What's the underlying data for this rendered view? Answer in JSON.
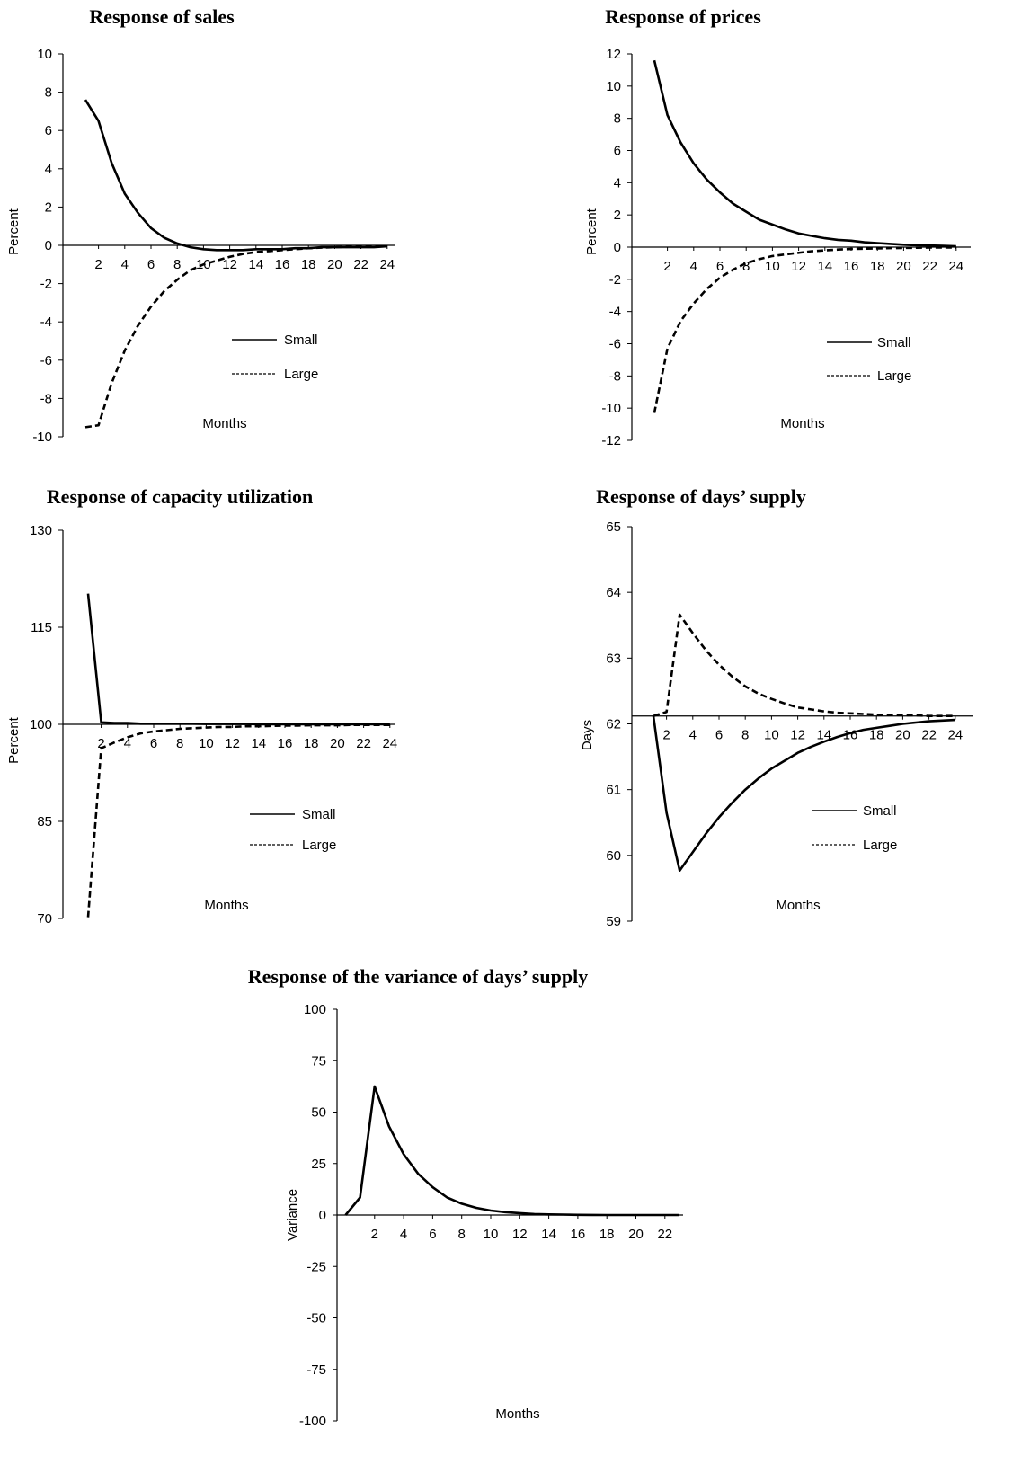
{
  "chart_data": [
    {
      "type": "line",
      "title": "Response of sales",
      "xlabel": "Months",
      "ylabel": "Percent",
      "ylim": [
        -10,
        10
      ],
      "yticks": [
        10,
        8,
        6,
        4,
        2,
        0,
        -2,
        -4,
        -6,
        -8,
        -10
      ],
      "xticks": [
        2,
        4,
        6,
        8,
        10,
        12,
        14,
        16,
        18,
        20,
        22,
        24
      ],
      "x": [
        1,
        2,
        3,
        4,
        5,
        6,
        7,
        8,
        9,
        10,
        11,
        12,
        13,
        14,
        15,
        16,
        17,
        18,
        19,
        20,
        21,
        22,
        23,
        24
      ],
      "series": [
        {
          "name": "Small",
          "dash": "solid",
          "values": [
            7.6,
            6.5,
            4.3,
            2.7,
            1.7,
            0.9,
            0.4,
            0.1,
            -0.1,
            -0.2,
            -0.25,
            -0.25,
            -0.25,
            -0.2,
            -0.2,
            -0.2,
            -0.15,
            -0.15,
            -0.1,
            -0.1,
            -0.1,
            -0.1,
            -0.1,
            -0.05
          ]
        },
        {
          "name": "Large",
          "dash": "dashed",
          "values": [
            -9.5,
            -9.4,
            -7.2,
            -5.5,
            -4.2,
            -3.2,
            -2.4,
            -1.8,
            -1.3,
            -1.0,
            -0.8,
            -0.6,
            -0.45,
            -0.35,
            -0.3,
            -0.25,
            -0.2,
            -0.15,
            -0.12,
            -0.1,
            -0.08,
            -0.06,
            -0.05,
            -0.05
          ]
        }
      ]
    },
    {
      "type": "line",
      "title": "Response of prices",
      "xlabel": "Months",
      "ylabel": "Percent",
      "ylim": [
        -12,
        12
      ],
      "yticks": [
        12,
        10,
        8,
        6,
        4,
        2,
        0,
        -2,
        -4,
        -6,
        -8,
        -10,
        -12
      ],
      "xticks": [
        2,
        4,
        6,
        8,
        10,
        12,
        14,
        16,
        18,
        20,
        22,
        24
      ],
      "x": [
        1,
        2,
        3,
        4,
        5,
        6,
        7,
        8,
        9,
        10,
        11,
        12,
        13,
        14,
        15,
        16,
        17,
        18,
        19,
        20,
        21,
        22,
        23,
        24
      ],
      "series": [
        {
          "name": "Small",
          "dash": "solid",
          "values": [
            11.6,
            8.2,
            6.5,
            5.2,
            4.2,
            3.4,
            2.7,
            2.2,
            1.7,
            1.4,
            1.1,
            0.85,
            0.7,
            0.55,
            0.45,
            0.4,
            0.3,
            0.25,
            0.2,
            0.15,
            0.12,
            0.1,
            0.08,
            0.05
          ]
        },
        {
          "name": "Large",
          "dash": "dashed",
          "values": [
            -10.3,
            -6.3,
            -4.6,
            -3.5,
            -2.6,
            -1.9,
            -1.4,
            -1.0,
            -0.75,
            -0.55,
            -0.45,
            -0.35,
            -0.25,
            -0.2,
            -0.15,
            -0.12,
            -0.1,
            -0.08,
            -0.06,
            -0.05,
            -0.04,
            -0.03,
            -0.02,
            -0.02
          ]
        }
      ]
    },
    {
      "type": "line",
      "title": "Response of capacity utilization",
      "xlabel": "Months",
      "ylabel": "Percent",
      "ylim": [
        70,
        130
      ],
      "yticks": [
        130,
        115,
        100,
        85,
        70
      ],
      "xticks": [
        2,
        4,
        6,
        8,
        10,
        12,
        14,
        16,
        18,
        20,
        22,
        24
      ],
      "x": [
        1,
        2,
        3,
        4,
        5,
        6,
        7,
        8,
        9,
        10,
        11,
        12,
        13,
        14,
        15,
        16,
        17,
        18,
        19,
        20,
        21,
        22,
        23,
        24
      ],
      "series": [
        {
          "name": "Small",
          "dash": "solid",
          "values": [
            120.2,
            100.3,
            100.2,
            100.2,
            100.1,
            100.1,
            100.1,
            100.1,
            100.1,
            100.05,
            100.05,
            100.05,
            100.05,
            100.0,
            100.0,
            100.0,
            100.0,
            100.0,
            100.0,
            100.0,
            100.0,
            100.0,
            100.0,
            100.0
          ]
        },
        {
          "name": "Large",
          "dash": "dashed",
          "values": [
            70.2,
            96.3,
            97.2,
            98.0,
            98.6,
            98.9,
            99.1,
            99.3,
            99.4,
            99.5,
            99.6,
            99.6,
            99.7,
            99.7,
            99.75,
            99.8,
            99.8,
            99.85,
            99.85,
            99.85,
            99.9,
            99.9,
            99.9,
            99.9
          ]
        }
      ]
    },
    {
      "type": "line",
      "title": "Response of days’ supply",
      "xlabel": "Months",
      "ylabel": "Days",
      "ylim": [
        59,
        65
      ],
      "yticks": [
        65,
        64,
        63,
        62,
        61,
        60,
        59
      ],
      "xticks": [
        2,
        4,
        6,
        8,
        10,
        12,
        14,
        16,
        18,
        20,
        22,
        24
      ],
      "x": [
        1,
        2,
        3,
        4,
        5,
        6,
        7,
        8,
        9,
        10,
        11,
        12,
        13,
        14,
        15,
        16,
        17,
        18,
        19,
        20,
        21,
        22,
        23,
        24
      ],
      "series": [
        {
          "name": "Small",
          "dash": "solid",
          "values": [
            62.12,
            60.65,
            59.77,
            60.05,
            60.33,
            60.58,
            60.8,
            61.0,
            61.17,
            61.32,
            61.44,
            61.56,
            61.65,
            61.73,
            61.8,
            61.86,
            61.91,
            61.94,
            61.97,
            62.0,
            62.02,
            62.04,
            62.05,
            62.06
          ]
        },
        {
          "name": "Large",
          "dash": "dashed",
          "values": [
            62.12,
            62.18,
            63.66,
            63.38,
            63.12,
            62.9,
            62.72,
            62.57,
            62.46,
            62.38,
            62.31,
            62.25,
            62.22,
            62.19,
            62.17,
            62.16,
            62.15,
            62.14,
            62.14,
            62.13,
            62.13,
            62.12,
            62.12,
            62.12
          ]
        }
      ]
    },
    {
      "type": "line",
      "title": "Response of the variance of days’ supply",
      "xlabel": "Months",
      "ylabel": "Variance",
      "ylim": [
        -100,
        100
      ],
      "yticks": [
        100,
        75,
        50,
        25,
        0,
        -25,
        -50,
        -75,
        -100
      ],
      "xticks": [
        2,
        4,
        6,
        8,
        10,
        12,
        14,
        16,
        18,
        20,
        22
      ],
      "x": [
        0,
        1,
        2,
        3,
        4,
        5,
        6,
        7,
        8,
        9,
        10,
        11,
        12,
        13,
        14,
        15,
        16,
        17,
        18,
        19,
        20,
        21,
        22,
        23
      ],
      "series": [
        {
          "name": "",
          "dash": "solid",
          "values": [
            0,
            8.5,
            62.5,
            43,
            29.5,
            20,
            13.5,
            8.5,
            5.5,
            3.5,
            2.2,
            1.4,
            0.9,
            0.5,
            0.3,
            0.2,
            0.1,
            0.05,
            0,
            0,
            0,
            0,
            0,
            0
          ]
        }
      ]
    }
  ],
  "legend": {
    "small": "Small",
    "large": "Large"
  }
}
